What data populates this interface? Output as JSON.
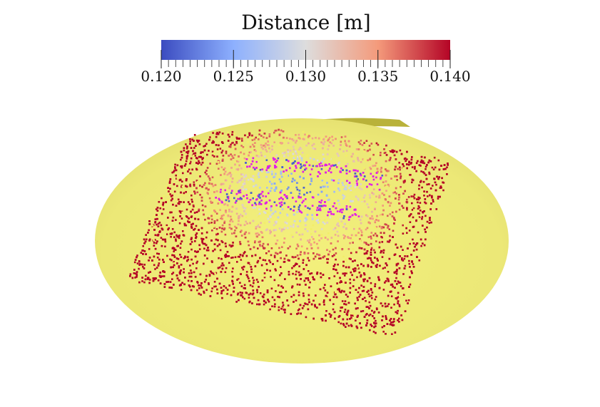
{
  "chart_data": {
    "type": "scatter",
    "colorbar": {
      "title": "Distance [m]",
      "range": [
        0.12,
        0.14
      ],
      "tick_labels": [
        "0.120",
        "0.125",
        "0.130",
        "0.135",
        "0.140"
      ],
      "colormap": [
        "#3b4cc0",
        "#8db0fe",
        "#dddddd",
        "#f49a7b",
        "#b40426"
      ]
    },
    "colors": {
      "ellipsoid": "#eeeb78",
      "ellipsoid_rim": "#b9b23a",
      "in_tolerance_points": "#f2ee6a",
      "below_range_points": "#e21ee6"
    },
    "point_cloud": {
      "background_surface": "yellow-ellipsoid",
      "distance_min_in_view": 0.12,
      "distance_max_in_view": 0.14
    }
  }
}
